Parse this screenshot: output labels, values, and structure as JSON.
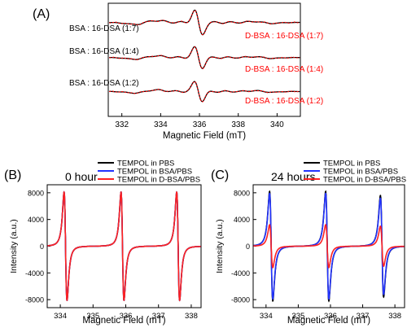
{
  "chart_data": [
    {
      "panel_label": "(A)",
      "type": "line",
      "xlabel": "Magnetic Field (mT)",
      "ylabel": "",
      "xlim": [
        331.3,
        341.2
      ],
      "xticks": [
        332,
        334,
        336,
        338,
        340
      ],
      "grid": false,
      "traces": [
        {
          "name": "BSA : 16-DSA (1:7)",
          "color": "#000000",
          "match": "D-BSA : 16-DSA (1:7)",
          "match_color": "#ff0000",
          "baseline_frac": 0.17,
          "amplitude": 1.0
        },
        {
          "name": "BSA : 16-DSA (1:4)",
          "color": "#000000",
          "match": "D-BSA : 16-DSA (1:4)",
          "match_color": "#ff0000",
          "baseline_frac": 0.48,
          "amplitude": 0.85
        },
        {
          "name": "BSA : 16-DSA (1:2)",
          "color": "#000000",
          "match": "D-BSA : 16-DSA (1:2)",
          "match_color": "#ff0000",
          "baseline_frac": 0.78,
          "amplitude": 0.8
        }
      ]
    },
    {
      "panel_label": "(B)",
      "annotation": "0 hour",
      "type": "line",
      "xlabel": "Magnetic Field (mT)",
      "ylabel": "Intensity (a.u.)",
      "xlim": [
        333.6,
        338.3
      ],
      "ylim": [
        -9200,
        9200
      ],
      "xticks": [
        334,
        335,
        336,
        337,
        338
      ],
      "yticks": [
        8000,
        4000,
        0,
        -4000,
        -8000
      ],
      "line_centers": [
        334.16,
        335.9,
        337.6
      ],
      "line_width": 0.045,
      "series": [
        {
          "name": "TEMPOL in PBS",
          "color": "#000000",
          "peak": 8100
        },
        {
          "name": "TEMPOL in BSA/PBS",
          "color": "#2233ff",
          "peak": 8100
        },
        {
          "name": "TEMPOL in D-BSA/PBS",
          "color": "#ff2222",
          "peak": 8100
        }
      ]
    },
    {
      "panel_label": "(C)",
      "annotation": "24 hours",
      "type": "line",
      "xlabel": "Magnetic Field (mT)",
      "ylabel": "Intensity (a.u.)",
      "xlim": [
        333.6,
        338.3
      ],
      "ylim": [
        -9200,
        9200
      ],
      "xticks": [
        334,
        335,
        336,
        337,
        338
      ],
      "yticks": [
        8000,
        4000,
        0,
        -4000,
        -8000
      ],
      "line_centers": [
        334.16,
        335.9,
        337.6
      ],
      "line_width": 0.05,
      "series": [
        {
          "name": "TEMPOL in PBS",
          "color": "#000000",
          "peaks": [
            8200,
            8200,
            7600
          ]
        },
        {
          "name": "TEMPOL in BSA/PBS",
          "color": "#2233ff",
          "peaks": [
            7900,
            7900,
            7200
          ]
        },
        {
          "name": "TEMPOL in D-BSA/PBS",
          "color": "#ff2222",
          "peaks": [
            3200,
            3200,
            3000
          ]
        }
      ]
    }
  ]
}
